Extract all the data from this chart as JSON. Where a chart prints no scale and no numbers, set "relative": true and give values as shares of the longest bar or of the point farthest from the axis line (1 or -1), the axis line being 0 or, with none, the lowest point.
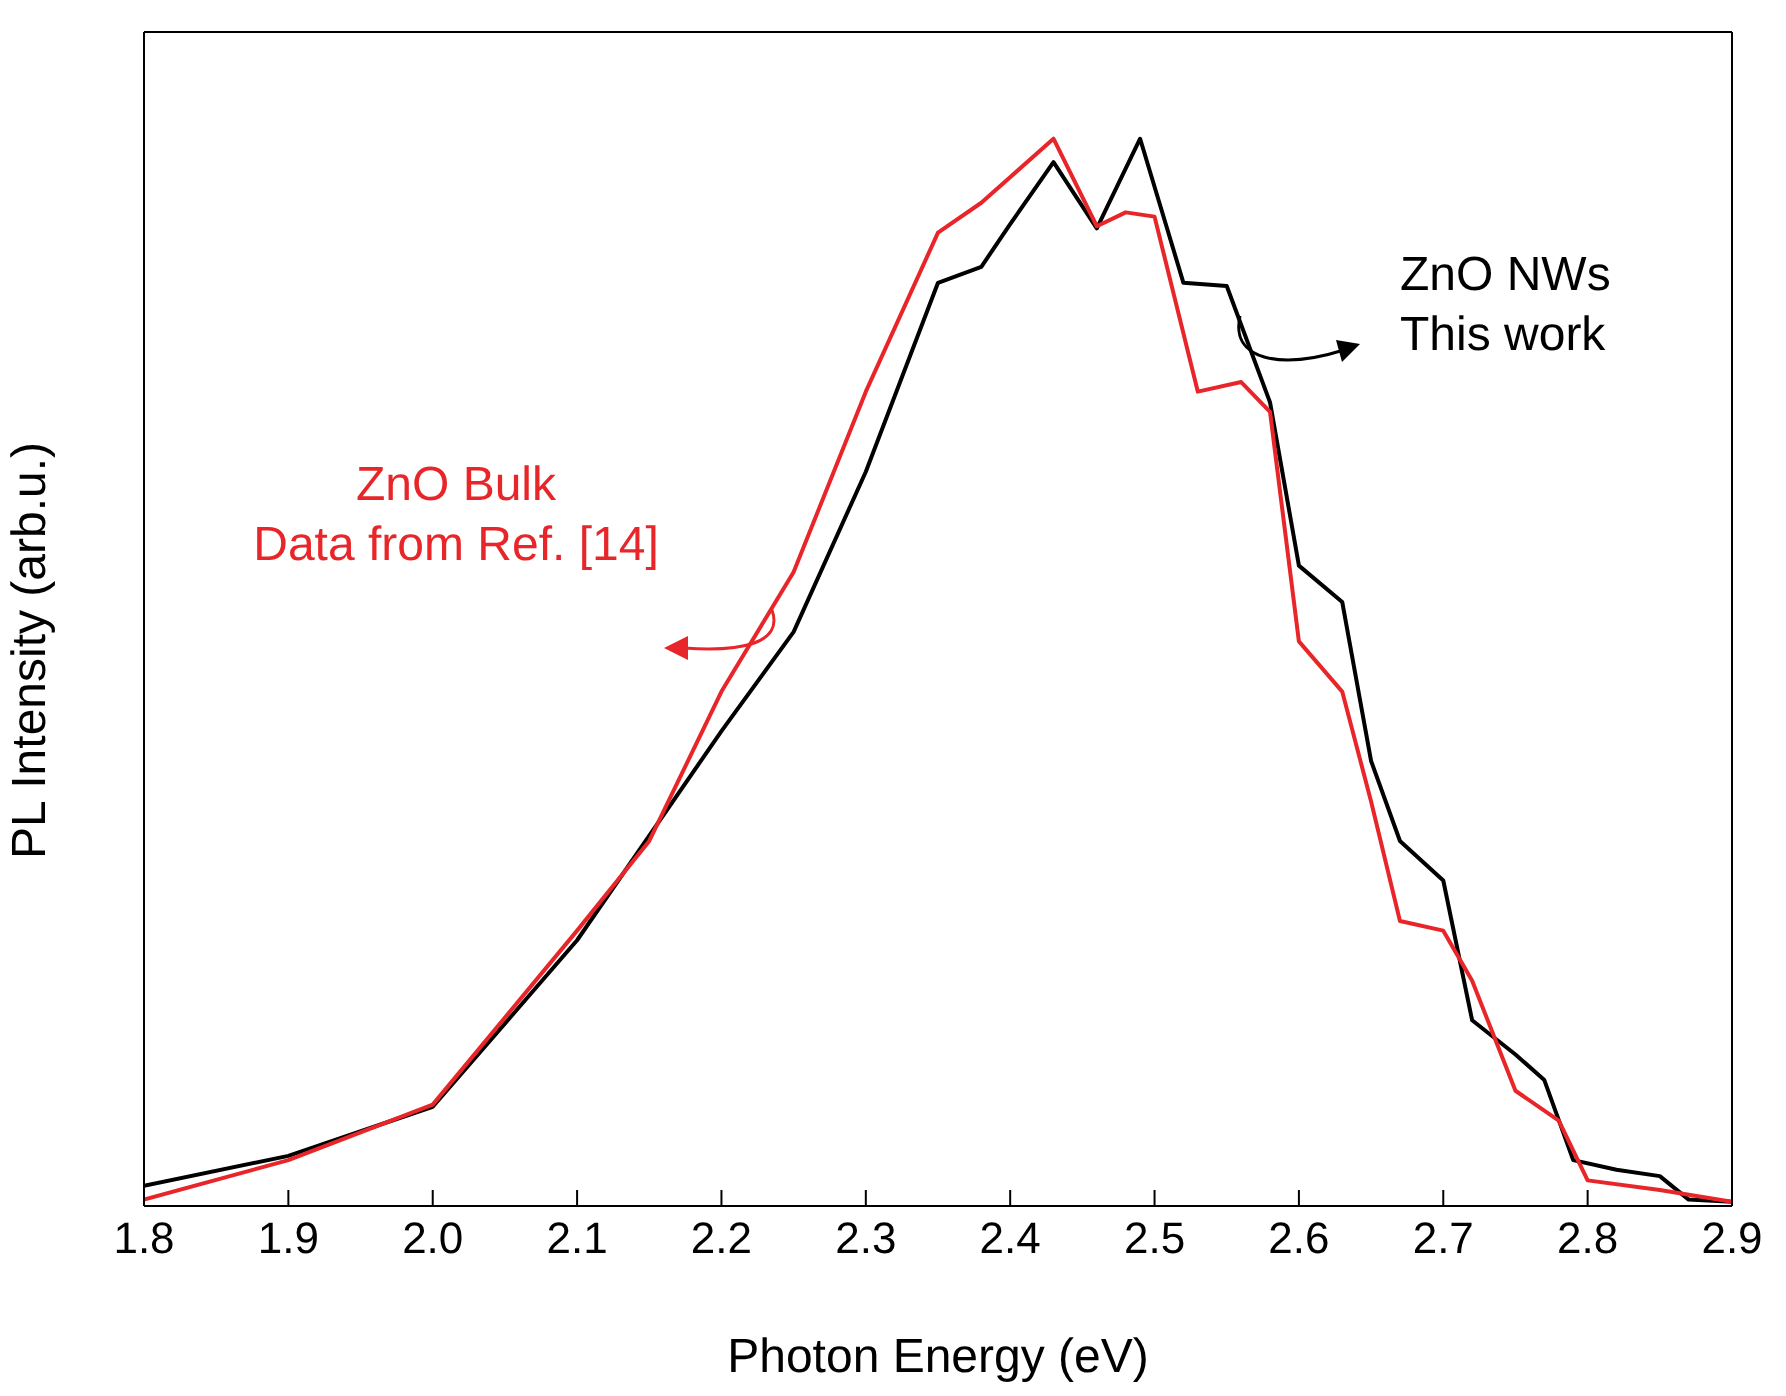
{
  "chart_data": {
    "type": "line",
    "relative": true,
    "xlabel": "Photon Energy (eV)",
    "ylabel": "PL Intensity (arb.u.)",
    "xlim": [
      1.8,
      2.9
    ],
    "xticks": [
      1.8,
      1.9,
      {
        "value": 2,
        "label": "2.0"
      },
      2.1,
      2.2,
      2.3,
      2.4,
      2.5,
      2.6,
      2.7,
      2.8,
      2.9
    ],
    "series": [
      {
        "color": "#000000",
        "x": [
          1.8,
          1.9,
          2.0,
          2.1,
          2.2,
          2.25,
          2.3,
          2.35,
          2.38,
          2.4,
          2.43,
          2.46,
          2.49,
          2.52,
          2.55,
          2.58,
          2.6,
          2.63,
          2.65,
          2.67,
          2.7,
          2.72,
          2.75,
          2.77,
          2.79,
          2.82,
          2.85,
          2.87,
          2.9
        ],
        "values": [
          0.019,
          0.047,
          0.093,
          0.249,
          0.445,
          0.538,
          0.688,
          0.865,
          0.88,
          0.92,
          0.978,
          0.916,
          1.0,
          0.865,
          0.862,
          0.753,
          0.6,
          0.566,
          0.417,
          0.342,
          0.305,
          0.174,
          0.142,
          0.118,
          0.043,
          0.034,
          0.028,
          0.006,
          0.004
        ]
      },
      {
        "color": "#e8262a",
        "x": [
          1.8,
          1.9,
          2.0,
          2.1,
          2.15,
          2.2,
          2.25,
          2.3,
          2.35,
          2.38,
          2.43,
          2.46,
          2.48,
          2.5,
          2.53,
          2.56,
          2.58,
          2.6,
          2.63,
          2.65,
          2.67,
          2.7,
          2.72,
          2.75,
          2.78,
          2.8,
          2.85,
          2.9
        ],
        "values": [
          0.006,
          0.043,
          0.095,
          0.258,
          0.342,
          0.482,
          0.594,
          0.763,
          0.912,
          0.94,
          1.0,
          0.918,
          0.931,
          0.927,
          0.763,
          0.772,
          0.744,
          0.529,
          0.482,
          0.379,
          0.267,
          0.258,
          0.211,
          0.108,
          0.08,
          0.024,
          0.015,
          0.004
        ]
      }
    ],
    "annotations": [
      "ZnO NWs\nThis work",
      "ZnO Bulk\nData from Ref. [14]"
    ],
    "marker": "none",
    "line_style": "solid"
  }
}
